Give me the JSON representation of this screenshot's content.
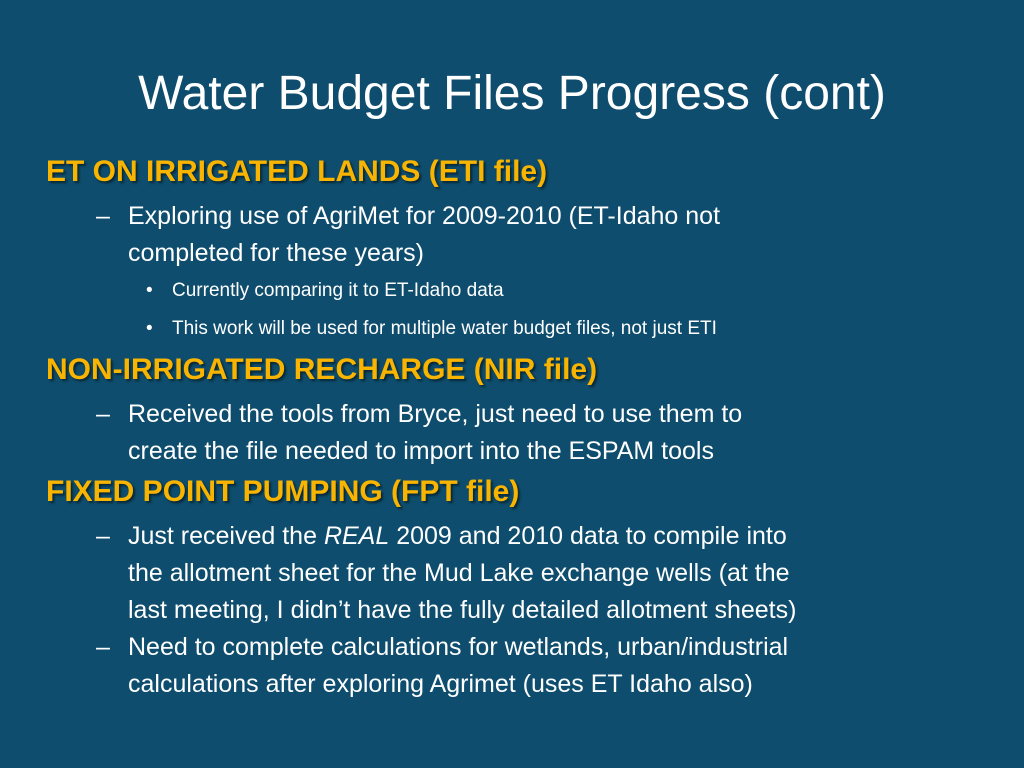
{
  "slide": {
    "title": "Water Budget Files Progress (cont)",
    "sections": [
      {
        "heading": "ET ON IRRIGATED LANDS (ETI file)",
        "items": [
          {
            "text_line1": "Exploring  use of AgriMet for 2009-2010 (ET-Idaho not",
            "text_line2": "completed for these years)",
            "subitems": [
              "Currently comparing it to ET-Idaho data",
              "This work will be used for multiple water budget files, not just ETI"
            ]
          }
        ]
      },
      {
        "heading": "NON-IRRIGATED RECHARGE (NIR file)",
        "items": [
          {
            "text_line1": "Received the tools from Bryce, just need to use them to",
            "text_line2": "create the file needed to import into the ESPAM tools"
          }
        ]
      },
      {
        "heading": "FIXED POINT PUMPING (FPT file)",
        "items": [
          {
            "prefix": "Just received the ",
            "emphasis": "REAL",
            "suffix": " 2009 and 2010 data to compile into",
            "text_line2": "the allotment sheet for the Mud Lake exchange wells (at the",
            "text_line3": "last meeting, I didn’t have the fully detailed allotment sheets)"
          },
          {
            "text_line1": "Need to complete calculations for wetlands, urban/industrial",
            "text_line2": "calculations after exploring Agrimet (uses ET Idaho also)"
          }
        ]
      }
    ],
    "dash_glyph": "–",
    "bullet_glyph": "•"
  },
  "colors": {
    "background": "#0e4d6d",
    "heading": "#f9b400",
    "body_text": "#ffffff"
  }
}
